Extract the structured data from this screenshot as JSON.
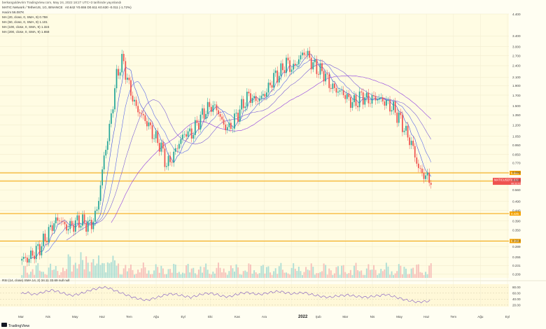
{
  "header": {
    "publish_line": "berkanguldevrim TradingView.com, May 24, 2022 18:27 UTC+3 tarihinde yayınlandı",
    "symbol_line": "MATIC Network / TetherUS, 1G, BINANCE",
    "ohlc": "A0.642  Y0.655  D0.611  K0.630  -0.011 (-1.72%)",
    "volume": "Hacim  56.087K",
    "ma20": "MA (20, close, 0, SMA, 9)  0.759",
    "ma50": "MA (50, close, 0, SMA, 9)  1.101",
    "ma100": "MA (100, close, 0, SMA, 9)  1.324",
    "ma200": "MA (200, close, 0, SMA, 9)  1.658",
    "rsi": "RSI (14, close) SMA 14, 2)  34.11  33.69  null  null"
  },
  "footer": {
    "logo_text": "TradingView",
    "year_label": "2022"
  },
  "colors": {
    "background": "#fffef2",
    "up_candle": "#26a69a",
    "down_candle": "#ef5350",
    "level_line": "#f5a300",
    "ma20": "#3f51e0",
    "ma50": "#5d6be8",
    "ma100": "#7b5fd6",
    "ma200": "#8e3ce0",
    "rsi_line": "#7e57c2",
    "price_tag": "#ef5350"
  },
  "chart_data": {
    "type": "candlestick",
    "title": "MATIC Network / TetherUS, 1G, BINANCE",
    "y_scale": "log",
    "y_ticks": [
      "4.400",
      "3.400",
      "3.000",
      "2.700",
      "2.400",
      "2.100",
      "1.900",
      "1.700",
      "1.500",
      "1.350",
      "1.200",
      "1.050",
      "0.950",
      "0.850",
      "0.770",
      "0.690",
      "0.630",
      "0.560",
      "0.490",
      "0.440",
      "0.390",
      "0.350",
      "0.310",
      "0.289",
      "0.255",
      "0.231",
      "0.209"
    ],
    "x_labels": [
      "Mar",
      "Nis",
      "May",
      "Haz",
      "Tem",
      "Ağu",
      "Eyl",
      "Eki",
      "Kas",
      "Ara",
      "2022",
      "Şub",
      "Mar",
      "Nis",
      "May",
      "Haz",
      "Tem",
      "Ağu",
      "Eyl"
    ],
    "price_ladder": [
      0.25,
      0.25,
      0.27,
      0.29,
      0.33,
      0.38,
      0.4,
      0.36,
      0.37,
      0.39,
      0.38,
      0.37,
      0.45,
      0.8,
      1.2,
      2.1,
      2.6,
      1.9,
      1.5,
      1.35,
      1.22,
      1.05,
      0.95,
      0.75,
      0.83,
      0.98,
      1.1,
      1.08,
      1.25,
      1.4,
      1.5,
      1.45,
      1.2,
      1.15,
      1.32,
      1.5,
      1.7,
      1.6,
      1.65,
      1.8,
      2.1,
      2.2,
      2.5,
      2.3,
      2.6,
      2.85,
      2.5,
      2.3,
      2.2,
      1.9,
      1.8,
      1.75,
      1.6,
      1.55,
      1.7,
      1.6,
      1.65,
      1.62,
      1.55,
      1.45,
      1.3,
      1.1,
      0.95,
      0.72,
      0.66,
      0.63
    ],
    "key_levels": [
      {
        "value": 0.684,
        "label": "0.684"
      },
      {
        "value": 0.621,
        "label": "0.621"
      },
      {
        "value": 0.425,
        "label": "0.425"
      },
      {
        "value": 0.308,
        "label": "0.308"
      }
    ],
    "last_price": {
      "label": "MATICUSDT",
      "value": "0.630",
      "sub": "06:33:02"
    },
    "moving_averages": [
      {
        "name": "MA (20, close, 0, SMA, 9)",
        "last": 0.759
      },
      {
        "name": "MA (50, close, 0, SMA, 9)",
        "last": 1.101
      },
      {
        "name": "MA (100, close, 0, SMA, 9)",
        "last": 1.324
      },
      {
        "name": "MA (200, close, 0, SMA, 9)",
        "last": 1.658
      }
    ],
    "rsi": {
      "ticks": [
        "80.00",
        "60.00",
        "40.00",
        "20.00"
      ],
      "last": 34.11,
      "values": [
        58,
        62,
        55,
        60,
        66,
        70,
        64,
        58,
        52,
        56,
        62,
        70,
        75,
        80,
        77,
        68,
        60,
        52,
        45,
        40,
        36,
        42,
        48,
        55,
        58,
        54,
        50,
        46,
        52,
        58,
        60,
        56,
        50,
        48,
        54,
        60,
        62,
        58,
        56,
        60,
        64,
        66,
        62,
        58,
        60,
        62,
        56,
        52,
        48,
        46,
        50,
        52,
        54,
        50,
        48,
        46,
        50,
        52,
        56,
        50,
        44,
        38,
        34,
        30,
        32,
        34
      ]
    }
  }
}
